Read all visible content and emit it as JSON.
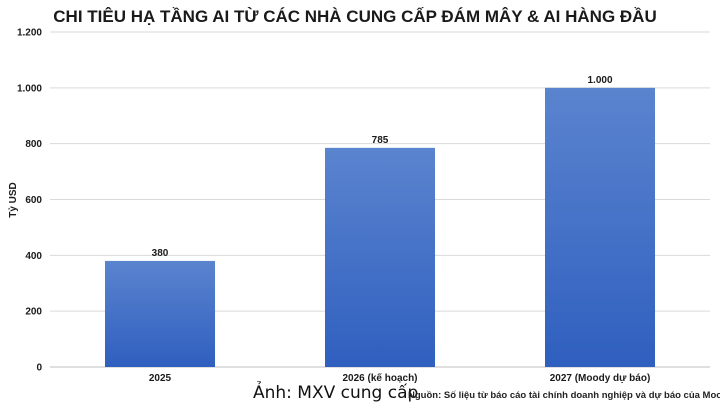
{
  "chart_data": {
    "type": "bar",
    "title": "CHI TIÊU HẠ TẦNG AI TỪ CÁC NHÀ CUNG CẤP ĐÁM MÂY & AI HÀNG ĐẦU",
    "ylabel": "Tỷ USD",
    "xlabel": "",
    "categories": [
      "2025",
      "2026 (kế hoạch)",
      "2027 (Moody dự báo)"
    ],
    "values": [
      380,
      785,
      1000
    ],
    "value_labels": [
      "380",
      "785",
      "1.000"
    ],
    "ylim": [
      0,
      1200
    ],
    "yticks": [
      0,
      200,
      400,
      600,
      800,
      1000,
      1200
    ],
    "ytick_labels": [
      "0",
      "200",
      "400",
      "600",
      "800",
      "1.000",
      "1.200"
    ],
    "grid": true,
    "bar_color_top": "#5b84cf",
    "bar_color_bottom": "#2f5fbf"
  },
  "caption": {
    "credit": "Ảnh: MXV cung cấp",
    "source": "Nguồn: Số liệu từ báo cáo tài chính doanh nghiệp và dự báo của Moody"
  }
}
